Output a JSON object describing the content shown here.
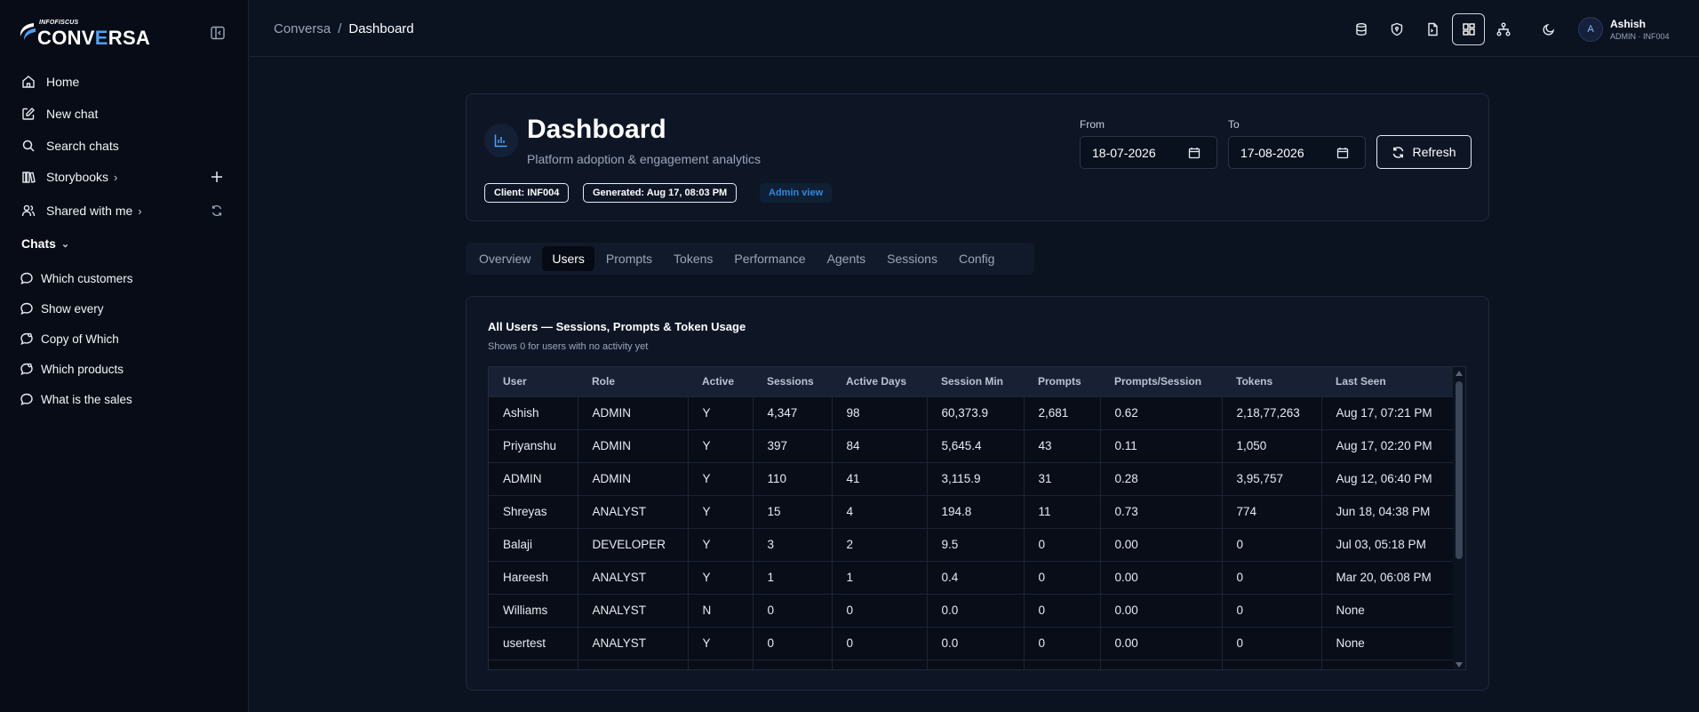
{
  "brand": {
    "small": "INFOFISCUS",
    "big_prefix": "CONV",
    "big_accent": "E",
    "big_suffix": "RSA"
  },
  "nav": {
    "home": "Home",
    "new_chat": "New chat",
    "search_chats": "Search chats",
    "storybooks": "Storybooks",
    "shared_with_me": "Shared with me",
    "chevron": "›"
  },
  "chats": {
    "header": "Chats",
    "header_chevron": "⌄",
    "items": [
      "Which customers",
      "Show every",
      "Copy of Which",
      "Which products",
      "What is the sales"
    ]
  },
  "breadcrumb": {
    "root": "Conversa",
    "sep": "/",
    "current": "Dashboard"
  },
  "user": {
    "initial": "A",
    "name": "Ashish",
    "role": "ADMIN · INF004"
  },
  "header": {
    "title": "Dashboard",
    "subtitle": "Platform adoption & engagement analytics",
    "client_pill": "Client: INF004",
    "generated_pill": "Generated: Aug 17, 08:03 PM",
    "admin_pill": "Admin view",
    "from_label": "From",
    "from_value": "18-07-2026",
    "to_label": "To",
    "to_value": "17-08-2026",
    "refresh_label": "Refresh"
  },
  "tabs": [
    "Overview",
    "Users",
    "Prompts",
    "Tokens",
    "Performance",
    "Agents",
    "Sessions",
    "Config"
  ],
  "active_tab": "Users",
  "users_table": {
    "title": "All Users — Sessions, Prompts & Token Usage",
    "subtitle": "Shows 0 for users with no activity yet",
    "columns": [
      "User",
      "Role",
      "Active",
      "Sessions",
      "Active Days",
      "Session Min",
      "Prompts",
      "Prompts/Session",
      "Tokens",
      "Last Seen"
    ],
    "rows": [
      [
        "Ashish",
        "ADMIN",
        "Y",
        "4,347",
        "98",
        "60,373.9",
        "2,681",
        "0.62",
        "2,18,77,263",
        "Aug 17, 07:21 PM"
      ],
      [
        "Priyanshu",
        "ADMIN",
        "Y",
        "397",
        "84",
        "5,645.4",
        "43",
        "0.11",
        "1,050",
        "Aug 17, 02:20 PM"
      ],
      [
        "ADMIN",
        "ADMIN",
        "Y",
        "110",
        "41",
        "3,115.9",
        "31",
        "0.28",
        "3,95,757",
        "Aug 12, 06:40 PM"
      ],
      [
        "Shreyas",
        "ANALYST",
        "Y",
        "15",
        "4",
        "194.8",
        "11",
        "0.73",
        "774",
        "Jun 18, 04:38 PM"
      ],
      [
        "Balaji",
        "DEVELOPER",
        "Y",
        "3",
        "2",
        "9.5",
        "0",
        "0.00",
        "0",
        "Jul 03, 05:18 PM"
      ],
      [
        "Hareesh",
        "ANALYST",
        "Y",
        "1",
        "1",
        "0.4",
        "0",
        "0.00",
        "0",
        "Mar 20, 06:08 PM"
      ],
      [
        "Williams",
        "ANALYST",
        "N",
        "0",
        "0",
        "0.0",
        "0",
        "0.00",
        "0",
        "None"
      ],
      [
        "usertest",
        "ANALYST",
        "Y",
        "0",
        "0",
        "0.0",
        "0",
        "0.00",
        "0",
        "None"
      ],
      [
        "",
        "",
        "",
        "",
        "",
        "",
        "",
        "",
        "",
        ""
      ]
    ]
  },
  "colors": {
    "background": "#0b1220",
    "sidebar": "#070c16",
    "card": "#0e1626",
    "accent": "#4aa3ff",
    "admin_pill_text": "#2d88e0"
  },
  "icons": {
    "topbar": [
      "database-icon",
      "shield-icon",
      "document-icon",
      "dashboard-grid-icon",
      "sitemap-icon",
      "moon-icon"
    ]
  }
}
